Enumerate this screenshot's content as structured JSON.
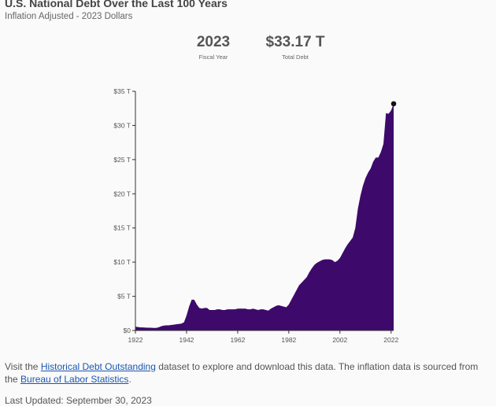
{
  "header": {
    "title": "U.S. National Debt Over the Last 100 Years",
    "subtitle": "Inflation Adjusted - 2023 Dollars"
  },
  "stats": {
    "year_value": "2023",
    "year_label": "Fiscal Year",
    "debt_value": "$33.17 T",
    "debt_label": "Total Debt"
  },
  "chart_data": {
    "type": "area",
    "title": "U.S. National Debt Over the Last 100 Years",
    "subtitle": "Inflation Adjusted - 2023 Dollars",
    "xlabel": "",
    "ylabel": "",
    "xlim": [
      1922,
      2023
    ],
    "ylim": [
      0,
      35
    ],
    "grid": false,
    "fill_color": "#3d0a6b",
    "highlight_color": "#111111",
    "x_ticks": [
      "1922",
      "1942",
      "1962",
      "1982",
      "2002",
      "2022"
    ],
    "y_ticks": [
      "$0",
      "$5 T",
      "$10 T",
      "$15 T",
      "$20 T",
      "$25 T",
      "$30 T",
      "$35 T"
    ],
    "highlight": {
      "x": 2023,
      "y": 33.17
    },
    "series": [
      {
        "x": [
          1922,
          1923,
          1924,
          1925,
          1926,
          1927,
          1928,
          1929,
          1930,
          1931,
          1932,
          1933,
          1934,
          1935,
          1936,
          1937,
          1938,
          1939,
          1940,
          1941,
          1942,
          1943,
          1944,
          1945,
          1946,
          1947,
          1948,
          1949,
          1950,
          1951,
          1952,
          1953,
          1954,
          1955,
          1956,
          1957,
          1958,
          1959,
          1960,
          1961,
          1962,
          1963,
          1964,
          1965,
          1966,
          1967,
          1968,
          1969,
          1970,
          1971,
          1972,
          1973,
          1974,
          1975,
          1976,
          1977,
          1978,
          1979,
          1980,
          1981,
          1982,
          1983,
          1984,
          1985,
          1986,
          1987,
          1988,
          1989,
          1990,
          1991,
          1992,
          1993,
          1994,
          1995,
          1996,
          1997,
          1998,
          1999,
          2000,
          2001,
          2002,
          2003,
          2004,
          2005,
          2006,
          2007,
          2008,
          2009,
          2010,
          2011,
          2012,
          2013,
          2014,
          2015,
          2016,
          2017,
          2018,
          2019,
          2020,
          2021,
          2022,
          2023
        ],
        "y": [
          0.55,
          0.5,
          0.45,
          0.45,
          0.42,
          0.4,
          0.4,
          0.38,
          0.38,
          0.45,
          0.6,
          0.7,
          0.75,
          0.75,
          0.8,
          0.85,
          0.9,
          0.95,
          1.0,
          1.2,
          2.2,
          3.5,
          4.5,
          4.5,
          3.8,
          3.3,
          3.2,
          3.3,
          3.3,
          3.0,
          3.0,
          3.0,
          3.1,
          3.1,
          3.0,
          3.0,
          3.1,
          3.1,
          3.1,
          3.1,
          3.2,
          3.2,
          3.2,
          3.2,
          3.1,
          3.1,
          3.2,
          3.1,
          3.0,
          3.1,
          3.1,
          3.0,
          2.9,
          3.2,
          3.4,
          3.6,
          3.7,
          3.6,
          3.5,
          3.4,
          3.8,
          4.5,
          5.2,
          5.9,
          6.6,
          7.0,
          7.4,
          7.8,
          8.5,
          9.1,
          9.6,
          9.9,
          10.1,
          10.3,
          10.4,
          10.4,
          10.4,
          10.3,
          10.0,
          10.2,
          10.6,
          11.3,
          12.0,
          12.6,
          13.1,
          13.6,
          15.0,
          17.8,
          19.7,
          21.2,
          22.3,
          23.1,
          23.7,
          24.7,
          25.3,
          25.3,
          26.1,
          27.3,
          31.8,
          31.7,
          32.2,
          33.17
        ]
      }
    ]
  },
  "footer": {
    "text_before": "Visit the ",
    "link1": "Historical Debt Outstanding",
    "text_middle": " dataset to explore and download this data. The inflation data is sourced from the ",
    "link2": "Bureau of Labor Statistics",
    "text_after": ".",
    "updated": "Last Updated: September 30, 2023"
  }
}
